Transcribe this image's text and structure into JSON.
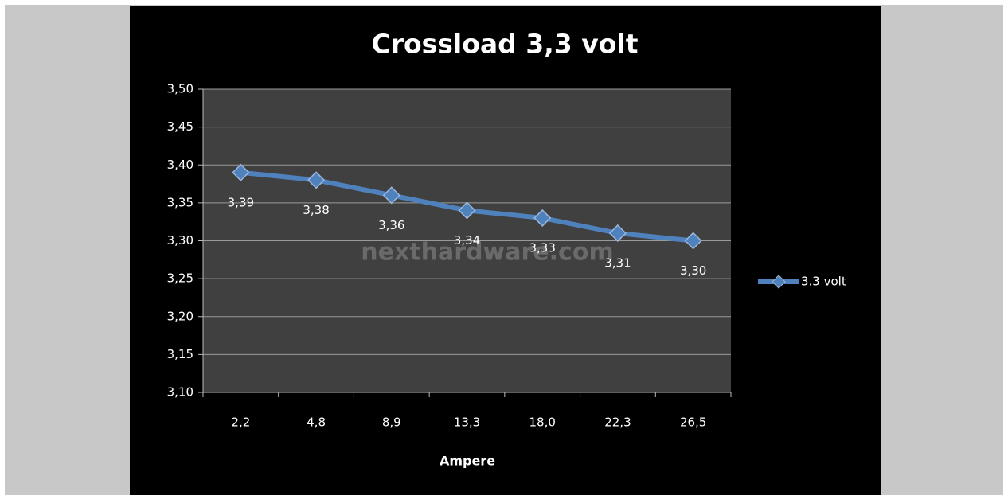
{
  "chart_data": {
    "type": "line",
    "title": "Crossload 3,3 volt",
    "x_label": "Ampere",
    "categories": [
      "2,2",
      "4,8",
      "8,9",
      "13,3",
      "18,0",
      "22,3",
      "26,5"
    ],
    "series": [
      {
        "name": "3.3 volt",
        "color": "#4f81bd",
        "values": [
          3.39,
          3.38,
          3.36,
          3.34,
          3.33,
          3.31,
          3.3
        ],
        "value_labels": [
          "3,39",
          "3,38",
          "3,36",
          "3,34",
          "3,33",
          "3,31",
          "3,30"
        ]
      }
    ],
    "ylim": [
      3.1,
      3.5
    ],
    "yticks": [
      {
        "value": 3.1,
        "label": "3,10"
      },
      {
        "value": 3.15,
        "label": "3,15"
      },
      {
        "value": 3.2,
        "label": "3,20"
      },
      {
        "value": 3.25,
        "label": "3,25"
      },
      {
        "value": 3.3,
        "label": "3,30"
      },
      {
        "value": 3.35,
        "label": "3,35"
      },
      {
        "value": 3.4,
        "label": "3,40"
      },
      {
        "value": 3.45,
        "label": "3,45"
      },
      {
        "value": 3.5,
        "label": "3,50"
      }
    ],
    "grid": true,
    "legend": "right",
    "watermark": "nexthardware.com"
  }
}
